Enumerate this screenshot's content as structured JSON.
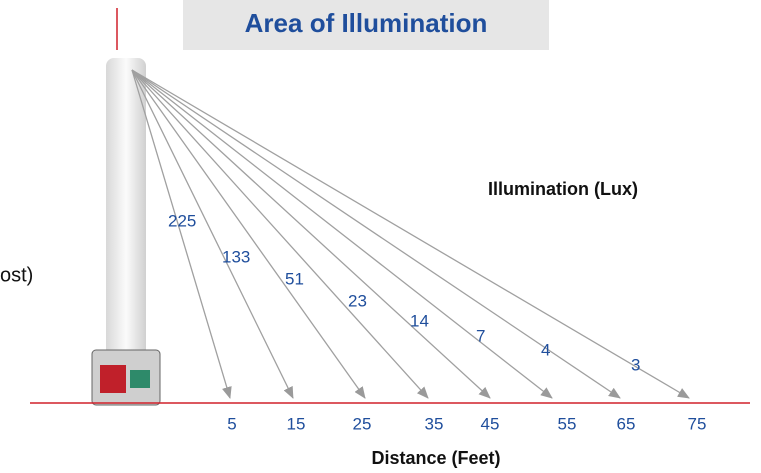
{
  "title": "Area of Illumination",
  "left_label": "ost)",
  "illumination_label": "Illumination (Lux)",
  "distance_label": "Distance (Feet)",
  "rays": [
    {
      "lux": 225,
      "distance": 5
    },
    {
      "lux": 133,
      "distance": 15
    },
    {
      "lux": 51,
      "distance": 25
    },
    {
      "lux": 23,
      "distance": 35
    },
    {
      "lux": 14,
      "distance": 45
    },
    {
      "lux": 7,
      "distance": 55
    },
    {
      "lux": 4,
      "distance": 65
    },
    {
      "lux": 3,
      "distance": 75
    }
  ]
}
